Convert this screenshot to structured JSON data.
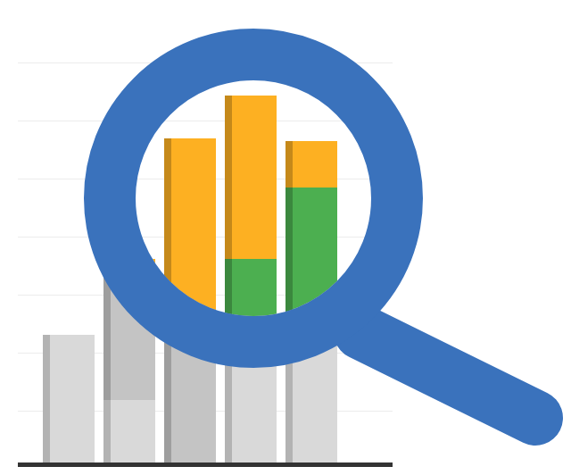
{
  "chart_data": {
    "type": "bar",
    "stacked": true,
    "categories": [
      null,
      null,
      null,
      null,
      null
    ],
    "series": [
      {
        "color": "#4CAF50",
        "values": [
          145,
          72,
          0,
          230,
          310
        ]
      },
      {
        "color": "#FDB022",
        "values": [
          0,
          158,
          365,
          183,
          52
        ]
      }
    ],
    "ylim": [
      0,
      450
    ],
    "yticks": [
      60,
      125,
      190,
      255,
      320,
      385,
      450
    ],
    "grid": true,
    "tick_labels": false
  }
}
